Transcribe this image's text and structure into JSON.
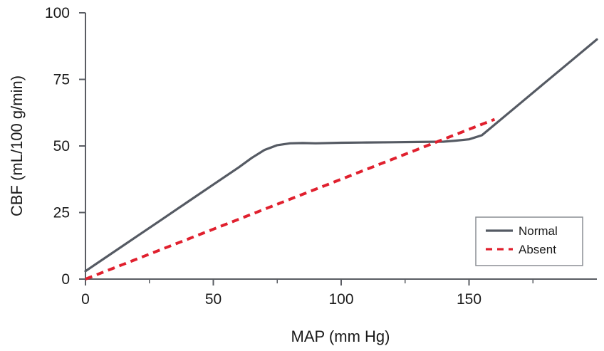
{
  "chart_data": {
    "type": "line",
    "title": "",
    "xlabel": "MAP (mm Hg)",
    "ylabel": "CBF (mL/100 g/min)",
    "xlim": [
      0,
      200
    ],
    "ylim": [
      0,
      100
    ],
    "xticks": [
      0,
      50,
      100,
      150
    ],
    "yticks": [
      0,
      25,
      50,
      75,
      100
    ],
    "grid": false,
    "legend_position": "bottom-right",
    "series": [
      {
        "name": "Normal",
        "color": "#555a63",
        "style": "solid",
        "x": [
          0,
          10,
          20,
          30,
          40,
          50,
          60,
          65,
          70,
          75,
          80,
          85,
          90,
          100,
          110,
          120,
          130,
          140,
          145,
          150,
          155,
          160,
          170,
          180,
          190,
          200
        ],
        "y": [
          3,
          9.5,
          16,
          22.5,
          29,
          35.5,
          42,
          45.5,
          48.5,
          50.3,
          51,
          51.1,
          51,
          51.2,
          51.3,
          51.4,
          51.5,
          51.6,
          52,
          52.5,
          54,
          58,
          66,
          74,
          82,
          90
        ]
      },
      {
        "name": "Absent",
        "color": "#e0202e",
        "style": "dashed",
        "x": [
          0,
          160
        ],
        "y": [
          0,
          60
        ]
      }
    ]
  }
}
